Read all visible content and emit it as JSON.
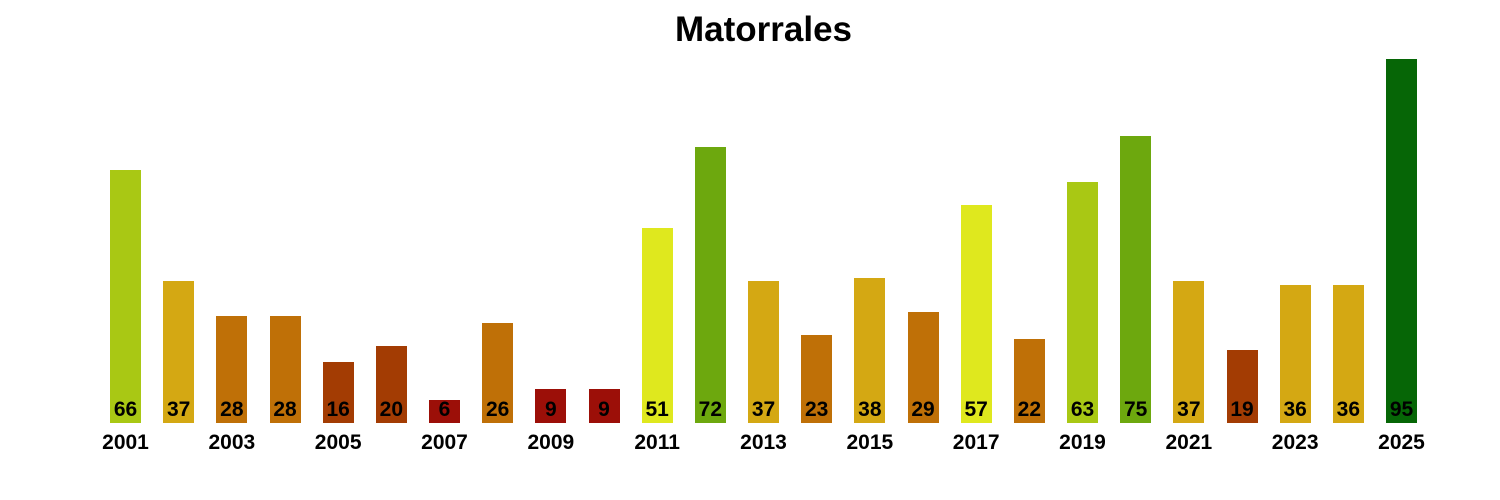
{
  "title": "Matorrales",
  "chart_data": {
    "type": "bar",
    "title": "Matorrales",
    "categories": [
      2001,
      2002,
      2003,
      2004,
      2005,
      2006,
      2007,
      2008,
      2009,
      2010,
      2011,
      2012,
      2013,
      2014,
      2015,
      2016,
      2017,
      2018,
      2019,
      2020,
      2021,
      2022,
      2023,
      2024,
      2025
    ],
    "values": [
      66,
      37,
      28,
      28,
      16,
      20,
      6,
      26,
      9,
      9,
      51,
      72,
      37,
      23,
      38,
      29,
      57,
      22,
      63,
      75,
      37,
      19,
      36,
      36,
      95
    ],
    "bar_colors": [
      "#a9c814",
      "#d4a813",
      "#bf7007",
      "#bf7007",
      "#a33c03",
      "#a33c03",
      "#9c0f08",
      "#bf7007",
      "#9c0f08",
      "#9c0f08",
      "#dfe81e",
      "#6da80e",
      "#d4a813",
      "#bf7007",
      "#d4a813",
      "#bf7007",
      "#dfe81e",
      "#bf7007",
      "#a9c814",
      "#6da80e",
      "#d4a813",
      "#a33c03",
      "#d4a813",
      "#d4a813",
      "#066606"
    ],
    "x_tick_labels": [
      "2001",
      "2003",
      "2005",
      "2007",
      "2009",
      "2011",
      "2013",
      "2015",
      "2017",
      "2019",
      "2021",
      "2023",
      "2025"
    ],
    "xlabel": "",
    "ylabel": "",
    "ylim": [
      0,
      100
    ],
    "grid": false,
    "axes_hidden": true,
    "legend": "none",
    "value_labels_position": "inside-bottom",
    "value_label_color": "#000000",
    "background_color": "#ffffff"
  }
}
